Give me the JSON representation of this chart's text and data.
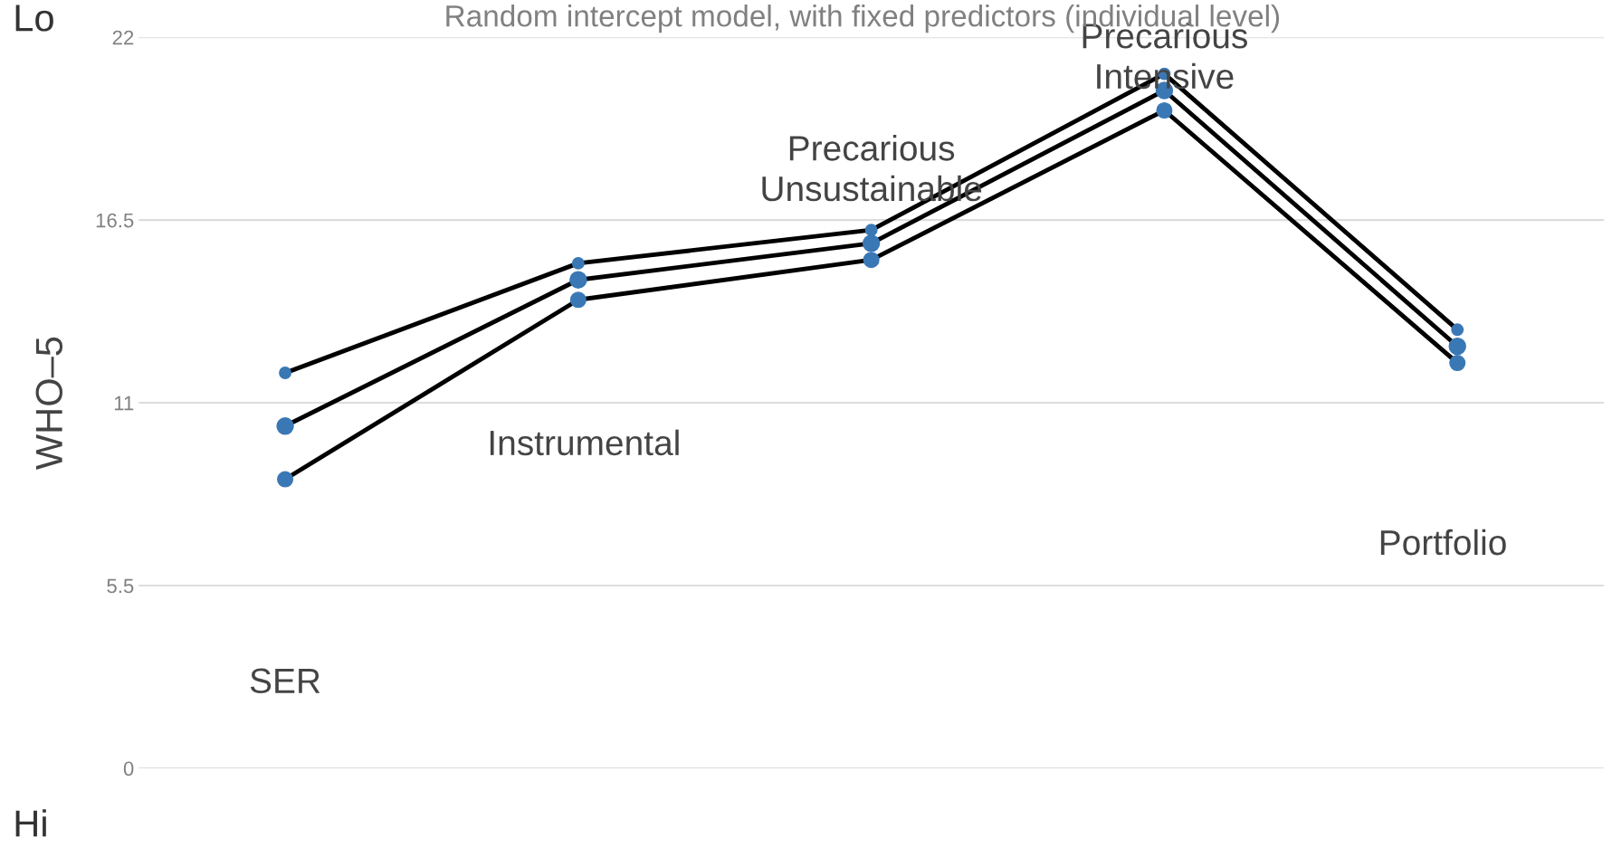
{
  "chart_data": {
    "type": "line",
    "title": "Random intercept model, with fixed predictors (individual level)",
    "ylabel": "WHO–5",
    "categories": [
      null,
      null,
      null,
      null,
      null
    ],
    "ylim": [
      0,
      22
    ],
    "yticks": [
      0,
      5.5,
      11,
      16.5,
      22
    ],
    "grid": "y",
    "tick_labels": "y",
    "marker": "circle",
    "line_style": "solid",
    "series": [
      {
        "color": "#000000",
        "values": [
          11.9,
          15.2,
          16.2,
          20.9,
          13.2
        ]
      },
      {
        "color": "#000000",
        "values": [
          10.3,
          14.7,
          15.8,
          20.4,
          12.7
        ]
      },
      {
        "color": "#000000",
        "values": [
          8.7,
          14.1,
          15.3,
          19.8,
          12.2
        ]
      }
    ],
    "annotations": [
      "SER",
      "Instrumental",
      "Precarious\nUnsustainable",
      "Precarious\nIntensive",
      "Portfolio",
      "Lo",
      "Hi"
    ]
  }
}
